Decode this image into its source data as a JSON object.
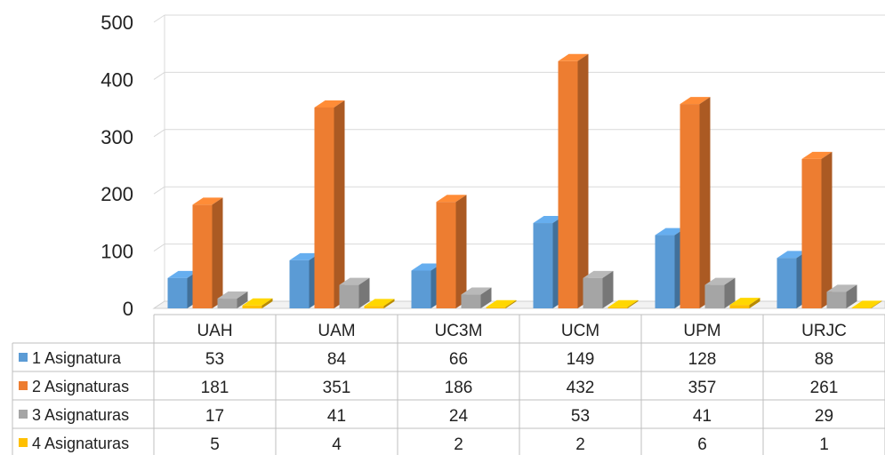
{
  "chart_data": {
    "type": "bar",
    "title": "",
    "xlabel": "",
    "ylabel": "",
    "ylim": [
      0,
      500
    ],
    "yticks": [
      0,
      100,
      200,
      300,
      400,
      500
    ],
    "grid": true,
    "legend": "data-table-left",
    "categories": [
      "UAH",
      "UAM",
      "UC3M",
      "UCM",
      "UPM",
      "URJC"
    ],
    "series": [
      {
        "name": "1 Asignatura",
        "color": "#5b9bd5",
        "values": [
          53,
          84,
          66,
          149,
          128,
          88
        ]
      },
      {
        "name": "2 Asignaturas",
        "color": "#ed7d31",
        "values": [
          181,
          351,
          186,
          432,
          357,
          261
        ]
      },
      {
        "name": "3 Asignaturas",
        "color": "#a5a5a5",
        "values": [
          17,
          41,
          24,
          53,
          41,
          29
        ]
      },
      {
        "name": "4 Asignaturas",
        "color": "#ffc000",
        "values": [
          5,
          4,
          2,
          2,
          6,
          1
        ]
      }
    ]
  }
}
